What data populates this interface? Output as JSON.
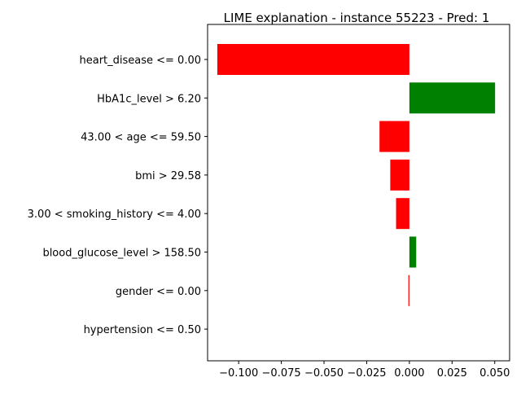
{
  "chart_data": {
    "type": "bar",
    "orientation": "horizontal",
    "title": "LIME explanation - instance 55223 - Pred: 1",
    "categories": [
      "heart_disease <= 0.00",
      "HbA1c_level > 6.20",
      "43.00 < age <= 59.50",
      "bmi > 29.58",
      "3.00 < smoking_history <= 4.00",
      "blood_glucose_level > 158.50",
      "gender <= 0.00",
      "hypertension <= 0.50"
    ],
    "values": [
      -0.1125,
      0.0502,
      -0.0175,
      -0.0112,
      -0.0078,
      0.004,
      -0.0006,
      0.0
    ],
    "xlim": [
      -0.1182,
      0.0587
    ],
    "xticks": [
      -0.1,
      -0.075,
      -0.05,
      -0.025,
      0.0,
      0.025,
      0.05
    ],
    "xtick_labels": [
      "−0.100",
      "−0.075",
      "−0.050",
      "−0.025",
      "0.000",
      "0.025",
      "0.050"
    ],
    "grid": false,
    "colors": {
      "positive": "#008000",
      "negative": "#ff0000",
      "axis": "#000000"
    }
  }
}
